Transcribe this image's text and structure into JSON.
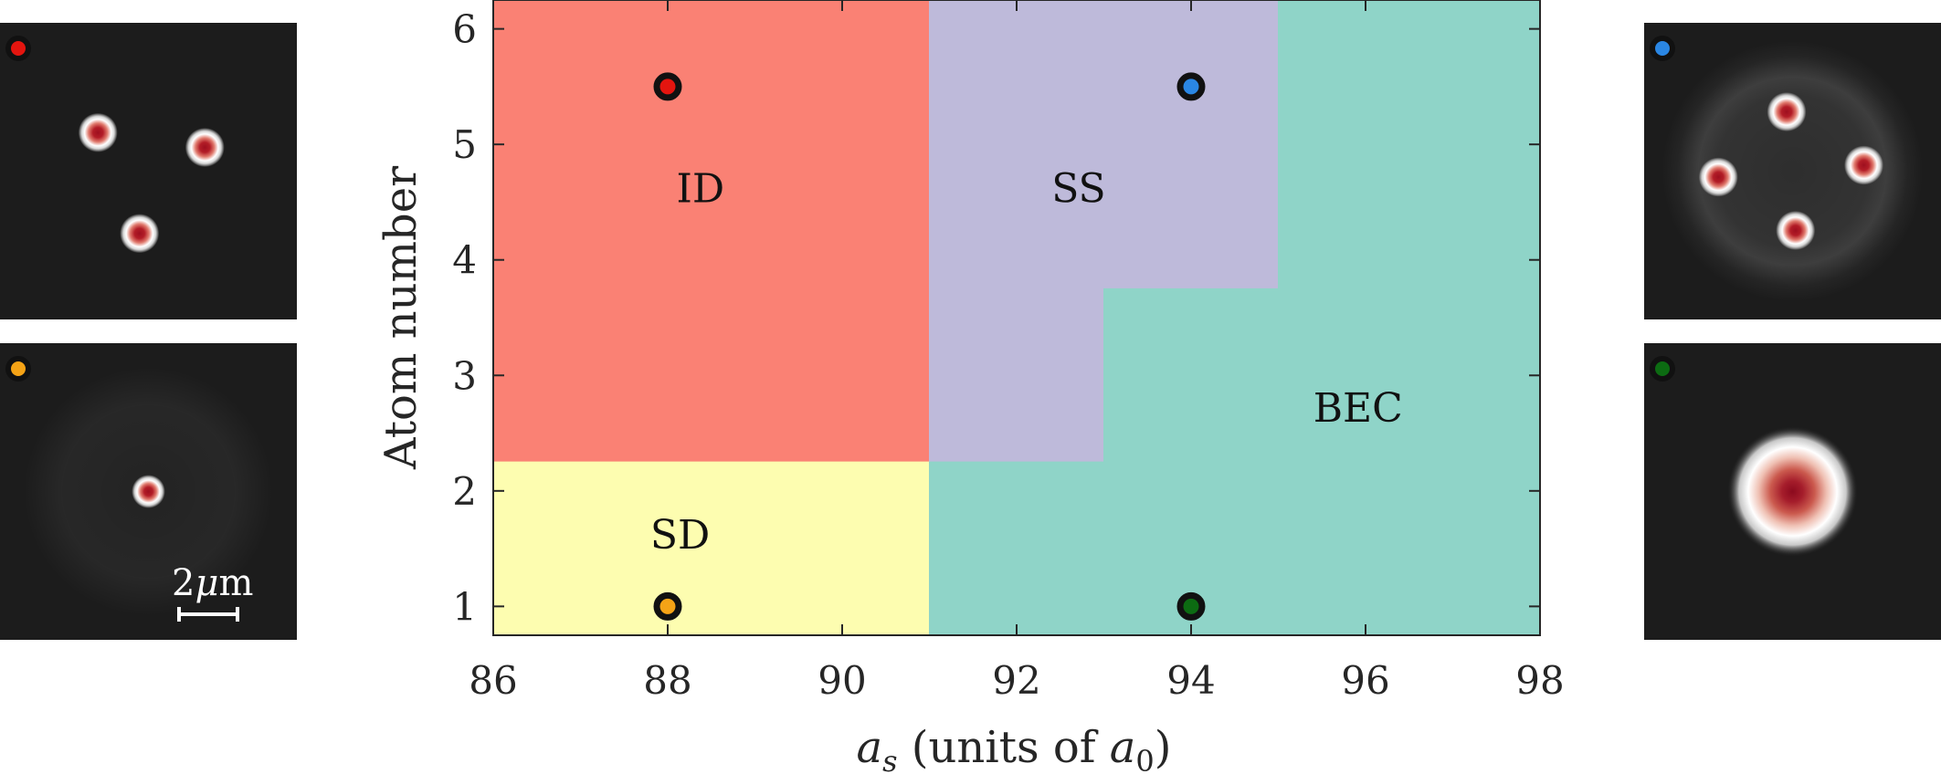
{
  "chart_data": {
    "type": "heatmap",
    "title": "",
    "xlabel_parts": {
      "symbol": "a",
      "subscript": "s",
      "text_before": " (units of ",
      "unit_symbol": "a",
      "unit_subscript": "0",
      "text_after": ")"
    },
    "ylabel": "Atom number",
    "xlim": [
      86,
      98
    ],
    "ylim": [
      0.75,
      6.25
    ],
    "xticks": [
      "86",
      "88",
      "90",
      "92",
      "94",
      "96",
      "98"
    ],
    "yticks": [
      "1",
      "2",
      "3",
      "4",
      "5",
      "6"
    ],
    "grid": false,
    "regions": [
      {
        "name": "ID",
        "color": "#fa8174",
        "polygon": [
          [
            86,
            2.25
          ],
          [
            91,
            2.25
          ],
          [
            91,
            6.25
          ],
          [
            86,
            6.25
          ]
        ],
        "label_at": [
          88.1,
          4.5
        ]
      },
      {
        "name": "SS",
        "color": "#bebada",
        "polygon": [
          [
            91,
            2.25
          ],
          [
            93,
            2.25
          ],
          [
            93,
            3.75
          ],
          [
            95,
            3.75
          ],
          [
            95,
            6.25
          ],
          [
            91,
            6.25
          ]
        ],
        "label_at": [
          92.4,
          4.5
        ]
      },
      {
        "name": "SD",
        "color": "#fdfdb0",
        "polygon": [
          [
            86,
            0.75
          ],
          [
            91,
            0.75
          ],
          [
            91,
            2.25
          ],
          [
            86,
            2.25
          ]
        ],
        "label_at": [
          87.8,
          1.5
        ]
      },
      {
        "name": "BEC",
        "color": "#8fd4c8",
        "polygon": [
          [
            91,
            0.75
          ],
          [
            98,
            0.75
          ],
          [
            98,
            6.25
          ],
          [
            95,
            6.25
          ],
          [
            95,
            3.75
          ],
          [
            93,
            3.75
          ],
          [
            93,
            2.25
          ],
          [
            91,
            2.25
          ]
        ],
        "label_at": [
          95.4,
          2.6
        ]
      }
    ],
    "markers": [
      {
        "x": 88,
        "y": 5.5,
        "color": "#e3150f"
      },
      {
        "x": 94,
        "y": 5.5,
        "color": "#2a86e3"
      },
      {
        "x": 88,
        "y": 1,
        "color": "#f5a316"
      },
      {
        "x": 94,
        "y": 1,
        "color": "#0c6b12"
      }
    ]
  },
  "density_panels": [
    {
      "position": "top-left",
      "marker_color": "#e3150f",
      "background": "#1c1c1c",
      "halo": "none",
      "blobs": [
        [
          0.33,
          0.37,
          1
        ],
        [
          0.69,
          0.42,
          1
        ],
        [
          0.47,
          0.71,
          1
        ]
      ]
    },
    {
      "position": "bottom-left",
      "marker_color": "#f5a316",
      "background": "#1c1c1c",
      "halo": "faint",
      "blobs": [
        [
          0.5,
          0.5,
          0.85
        ]
      ]
    },
    {
      "position": "top-right",
      "marker_color": "#2a86e3",
      "background": "#1c1c1c",
      "halo": "ring",
      "blobs": [
        [
          0.48,
          0.3,
          1
        ],
        [
          0.25,
          0.52,
          1
        ],
        [
          0.74,
          0.48,
          1
        ],
        [
          0.51,
          0.7,
          1
        ]
      ]
    },
    {
      "position": "bottom-right",
      "marker_color": "#0c6b12",
      "background": "#1c1c1c",
      "halo": "none",
      "blobs": [
        [
          0.5,
          0.5,
          4.6
        ]
      ]
    }
  ],
  "scale_bar": {
    "label_parts": {
      "number": "2",
      "symbol": "μ",
      "unit": "m"
    }
  }
}
